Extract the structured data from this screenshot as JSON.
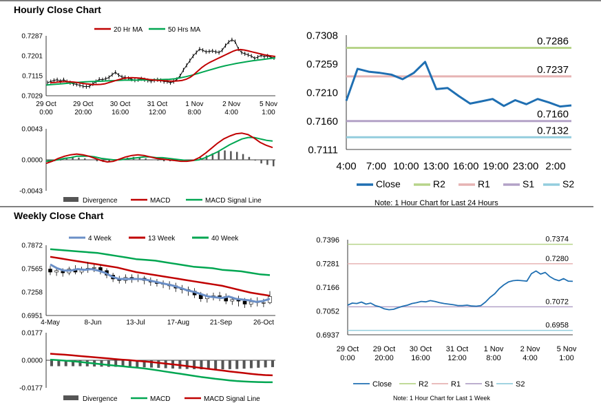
{
  "hourly_title": "Hourly Close Chart",
  "weekly_title": "Weekly Close Chart",
  "chart_data": [
    {
      "id": "hourly_price",
      "type": "line",
      "legend": [
        "20 Hr MA",
        "50 Hrs MA"
      ],
      "colors": {
        "ma20": "#c00000",
        "ma50": "#00a651",
        "price": "#000000"
      },
      "yticks": [
        "0.7287",
        "0.7201",
        "0.7115",
        "0.7029"
      ],
      "ylim": [
        0.7029,
        0.7287
      ],
      "xlabels": [
        [
          "29 Oct",
          "0:00"
        ],
        [
          "29 Oct",
          "20:00"
        ],
        [
          "30 Oct",
          "16:00"
        ],
        [
          "31 Oct",
          "12:00"
        ],
        [
          "1 Nov",
          "8:00"
        ],
        [
          "2 Nov",
          "4:00"
        ],
        [
          "5 Nov",
          "1:00"
        ]
      ],
      "close": [
        0.7085,
        0.709,
        0.7095,
        0.7098,
        0.7092,
        0.7098,
        0.709,
        0.7085,
        0.708,
        0.7078,
        0.7074,
        0.707,
        0.7068,
        0.707,
        0.708,
        0.709,
        0.71,
        0.7098,
        0.7102,
        0.7108,
        0.712,
        0.713,
        0.7118,
        0.711,
        0.7108,
        0.7104,
        0.71,
        0.7096,
        0.7098,
        0.7102,
        0.7098,
        0.7095,
        0.7092,
        0.7095,
        0.7098,
        0.7095,
        0.709,
        0.709,
        0.7085,
        0.709,
        0.71,
        0.7115,
        0.714,
        0.716,
        0.718,
        0.72,
        0.7215,
        0.723,
        0.7225,
        0.7218,
        0.722,
        0.7222,
        0.7218,
        0.7215,
        0.7225,
        0.7245,
        0.726,
        0.727,
        0.7262,
        0.723,
        0.7215,
        0.721,
        0.7205,
        0.72,
        0.719,
        0.7195,
        0.7203,
        0.7198,
        0.72,
        0.7195,
        0.7192
      ],
      "ma20": [
        0.7085,
        0.7086,
        0.7088,
        0.7089,
        0.709,
        0.7089,
        0.7088,
        0.7086,
        0.7083,
        0.7081,
        0.7079,
        0.7077,
        0.7077,
        0.7078,
        0.708,
        0.7085,
        0.709,
        0.7095,
        0.71,
        0.7104,
        0.7106,
        0.7107,
        0.7106,
        0.7105,
        0.7103,
        0.71,
        0.7098,
        0.7096,
        0.7095,
        0.7094,
        0.7093,
        0.7092,
        0.7092,
        0.7093,
        0.7095,
        0.71,
        0.7108,
        0.712,
        0.7135,
        0.715,
        0.7162,
        0.7172,
        0.718,
        0.7188,
        0.7196,
        0.7204,
        0.7212,
        0.722,
        0.7226,
        0.7228,
        0.7226,
        0.7222,
        0.7218,
        0.7214,
        0.721,
        0.7206,
        0.7203,
        0.72,
        0.7198
      ],
      "ma50": [
        0.7075,
        0.7077,
        0.7079,
        0.7081,
        0.7083,
        0.7085,
        0.7087,
        0.7089,
        0.709,
        0.7091,
        0.7092,
        0.7093,
        0.7094,
        0.7095,
        0.7096,
        0.7096,
        0.7096,
        0.7097,
        0.7097,
        0.7098,
        0.7098,
        0.7099,
        0.71,
        0.7102,
        0.7106,
        0.7111,
        0.7117,
        0.7124,
        0.7131,
        0.7138,
        0.7145,
        0.7152,
        0.7158,
        0.7163,
        0.7168,
        0.7172,
        0.7176,
        0.718,
        0.7183,
        0.7186,
        0.7189,
        0.7192
      ]
    },
    {
      "id": "hourly_macd",
      "type": "line",
      "legend": [
        "Divergence",
        "MACD",
        "MACD Signal Line"
      ],
      "colors": {
        "macd": "#c00000",
        "signal": "#00a651",
        "div": "#555555"
      },
      "yticks": [
        "0.0043",
        "0.0000",
        "-0.0043"
      ],
      "ylim": [
        -0.0043,
        0.0043
      ],
      "macd": [
        -0.0005,
        -0.0002,
        0.0002,
        0.0005,
        0.0007,
        0.0008,
        0.0007,
        0.0005,
        0.0002,
        -0.0001,
        -0.0003,
        -0.0002,
        0.0001,
        0.0004,
        0.0006,
        0.0007,
        0.0006,
        0.0004,
        0.0002,
        0.0001,
        0.0,
        -0.0001,
        -0.0002,
        -0.0002,
        -0.0001,
        0.0003,
        0.0009,
        0.0016,
        0.0023,
        0.0029,
        0.0033,
        0.0036,
        0.0037,
        0.0035,
        0.003,
        0.0024,
        0.002,
        0.0017
      ],
      "signal": [
        -0.0002,
        -0.0001,
        0.0,
        0.0002,
        0.0003,
        0.0005,
        0.0005,
        0.0005,
        0.0004,
        0.0002,
        0.0001,
        0.0,
        0.0,
        0.0001,
        0.0002,
        0.0003,
        0.0004,
        0.0004,
        0.0003,
        0.0003,
        0.0002,
        0.0001,
        0.0,
        -0.0001,
        -0.0001,
        0.0,
        0.0003,
        0.0007,
        0.0011,
        0.0016,
        0.0021,
        0.0025,
        0.0029,
        0.0031,
        0.0031,
        0.0029,
        0.0027,
        0.0026
      ],
      "divergence": [
        -0.0003,
        -0.0002,
        -0.0001,
        0.0002,
        0.0003,
        0.0003,
        0.0002,
        0.0,
        -0.0002,
        -0.0003,
        -0.0003,
        -0.0002,
        0.0001,
        0.0003,
        0.0004,
        0.0004,
        0.0002,
        0.0,
        -0.0001,
        -0.0002,
        -0.0002,
        -0.0002,
        -0.0002,
        -0.0001,
        0.0,
        0.0003,
        0.0006,
        0.0009,
        0.0012,
        0.0013,
        0.0012,
        0.0011,
        0.0008,
        0.0004,
        -0.0001,
        -0.0005,
        -0.0007,
        -0.0009
      ]
    },
    {
      "id": "hourly_24h",
      "type": "line",
      "legend": [
        "Close",
        "R2",
        "R1",
        "S1",
        "S2"
      ],
      "colors": {
        "close": "#1f6fb2",
        "r2": "#b7d48a",
        "r1": "#e6b3b3",
        "s1": "#b3a2c7",
        "s2": "#93cddd"
      },
      "yticks": [
        "0.7308",
        "0.7259",
        "0.7210",
        "0.7160",
        "0.7111"
      ],
      "ylim": [
        0.7111,
        0.7308
      ],
      "xticks": [
        "4:00",
        "7:00",
        "10:00",
        "13:00",
        "16:00",
        "19:00",
        "23:00",
        "2:00"
      ],
      "close": [
        0.7195,
        0.725,
        0.7245,
        0.7243,
        0.724,
        0.7232,
        0.7243,
        0.7262,
        0.7215,
        0.7217,
        0.7203,
        0.719,
        0.7194,
        0.7198,
        0.7186,
        0.7196,
        0.7189,
        0.7198,
        0.7192,
        0.7185,
        0.7187
      ],
      "levels": {
        "r2": 0.7286,
        "r1": 0.7237,
        "s1": 0.716,
        "s2": 0.7132
      },
      "level_labels": {
        "r2": "0.7286",
        "r1": "0.7237",
        "s1": "0.7160",
        "s2": "0.7132"
      },
      "note": "Note: 1 Hour Chart for Last 24 Hours"
    },
    {
      "id": "weekly_price",
      "type": "line",
      "legend": [
        "4 Week",
        "13 Week",
        "40 Week"
      ],
      "colors": {
        "ma4": "#6a8fc7",
        "ma13": "#c00000",
        "ma40": "#00a651"
      },
      "yticks": [
        "0.7872",
        "0.7565",
        "0.7258",
        "0.6951"
      ],
      "ylim": [
        0.6951,
        0.7872
      ],
      "xticks": [
        "4-May",
        "8-Jun",
        "13-Jul",
        "17-Aug",
        "21-Sep",
        "26-Oct"
      ],
      "close": [
        0.758,
        0.753,
        0.751,
        0.756,
        0.752,
        0.756,
        0.757,
        0.758,
        0.754,
        0.748,
        0.743,
        0.741,
        0.745,
        0.743,
        0.744,
        0.741,
        0.739,
        0.737,
        0.736,
        0.734,
        0.731,
        0.729,
        0.727,
        0.722,
        0.717,
        0.72,
        0.721,
        0.72,
        0.714,
        0.716,
        0.714,
        0.71,
        0.713,
        0.712,
        0.712,
        0.72
      ],
      "ma4": [
        0.762,
        0.757,
        0.754,
        0.754,
        0.756,
        0.755,
        0.756,
        0.754,
        0.751,
        0.746,
        0.743,
        0.743,
        0.743,
        0.743,
        0.742,
        0.74,
        0.738,
        0.736,
        0.734,
        0.731,
        0.728,
        0.726,
        0.723,
        0.72,
        0.719,
        0.718,
        0.72,
        0.717,
        0.716,
        0.715,
        0.713,
        0.714,
        0.717
      ],
      "ma13": [
        0.772,
        0.77,
        0.768,
        0.766,
        0.764,
        0.762,
        0.76,
        0.758,
        0.755,
        0.752,
        0.75,
        0.748,
        0.746,
        0.744,
        0.742,
        0.74,
        0.738,
        0.736,
        0.734,
        0.731,
        0.728,
        0.725,
        0.723,
        0.721
      ],
      "ma40": [
        0.782,
        0.781,
        0.78,
        0.779,
        0.778,
        0.777,
        0.775,
        0.773,
        0.771,
        0.769,
        0.768,
        0.767,
        0.765,
        0.763,
        0.761,
        0.759,
        0.758,
        0.757,
        0.755,
        0.754,
        0.753,
        0.751,
        0.749,
        0.748
      ],
      "candles": [
        [
          0.756,
          0.752,
          0.76,
          0.748
        ],
        [
          0.752,
          0.754,
          0.758,
          0.747
        ],
        [
          0.753,
          0.751,
          0.757,
          0.746
        ],
        [
          0.751,
          0.756,
          0.759,
          0.748
        ],
        [
          0.756,
          0.752,
          0.761,
          0.749
        ],
        [
          0.752,
          0.756,
          0.759,
          0.749
        ],
        [
          0.756,
          0.757,
          0.765,
          0.751
        ],
        [
          0.757,
          0.758,
          0.762,
          0.752
        ],
        [
          0.758,
          0.754,
          0.761,
          0.749
        ],
        [
          0.754,
          0.748,
          0.757,
          0.744
        ],
        [
          0.748,
          0.743,
          0.751,
          0.739
        ],
        [
          0.743,
          0.741,
          0.747,
          0.737
        ],
        [
          0.741,
          0.745,
          0.749,
          0.737
        ],
        [
          0.745,
          0.743,
          0.749,
          0.738
        ],
        [
          0.743,
          0.744,
          0.749,
          0.739
        ],
        [
          0.744,
          0.741,
          0.747,
          0.736
        ],
        [
          0.741,
          0.739,
          0.745,
          0.734
        ],
        [
          0.739,
          0.737,
          0.743,
          0.733
        ],
        [
          0.737,
          0.736,
          0.741,
          0.731
        ],
        [
          0.736,
          0.734,
          0.74,
          0.729
        ],
        [
          0.734,
          0.731,
          0.738,
          0.726
        ],
        [
          0.731,
          0.729,
          0.735,
          0.724
        ],
        [
          0.729,
          0.727,
          0.733,
          0.721
        ],
        [
          0.727,
          0.722,
          0.731,
          0.718
        ],
        [
          0.722,
          0.717,
          0.726,
          0.713
        ],
        [
          0.717,
          0.72,
          0.724,
          0.712
        ],
        [
          0.72,
          0.721,
          0.725,
          0.715
        ],
        [
          0.721,
          0.72,
          0.726,
          0.714
        ],
        [
          0.72,
          0.714,
          0.724,
          0.71
        ],
        [
          0.714,
          0.716,
          0.72,
          0.709
        ],
        [
          0.716,
          0.714,
          0.721,
          0.707
        ],
        [
          0.714,
          0.71,
          0.718,
          0.705
        ],
        [
          0.71,
          0.713,
          0.718,
          0.706
        ],
        [
          0.713,
          0.712,
          0.719,
          0.707
        ],
        [
          0.712,
          0.712,
          0.717,
          0.706
        ],
        [
          0.712,
          0.72,
          0.727,
          0.71
        ]
      ]
    },
    {
      "id": "weekly_macd",
      "type": "line",
      "legend": [
        "Divergence",
        "MACD",
        "MACD Signal Line"
      ],
      "colors": {
        "macd": "#00a651",
        "signal": "#c00000",
        "div": "#555555"
      },
      "yticks": [
        "0.0177",
        "0.0000",
        "-0.0177"
      ],
      "ylim": [
        -0.0177,
        0.0177
      ],
      "macd": [
        0.0004,
        0.0001,
        -0.0002,
        -0.0006,
        -0.001,
        -0.0015,
        -0.002,
        -0.0025,
        -0.003,
        -0.0034,
        -0.0038,
        -0.0043,
        -0.0047,
        -0.0052,
        -0.0058,
        -0.0065,
        -0.0072,
        -0.0079,
        -0.0086,
        -0.0093,
        -0.01,
        -0.0107,
        -0.0113,
        -0.0119,
        -0.0124,
        -0.0129,
        -0.0133,
        -0.0136,
        -0.0138,
        -0.014,
        -0.0141,
        -0.0141
      ],
      "signal": [
        0.0042,
        0.0039,
        0.0036,
        0.0032,
        0.0028,
        0.0024,
        0.002,
        0.0016,
        0.0012,
        0.0008,
        0.0004,
        0.0001,
        -0.0003,
        -0.0007,
        -0.0011,
        -0.0016,
        -0.0021,
        -0.0026,
        -0.0031,
        -0.0037,
        -0.0043,
        -0.0049,
        -0.0055,
        -0.006,
        -0.0066,
        -0.0072,
        -0.0077,
        -0.0082,
        -0.0087,
        -0.0092,
        -0.0095,
        -0.0097
      ],
      "divergence": [
        -0.0038,
        -0.0038,
        -0.0038,
        -0.0038,
        -0.0038,
        -0.0039,
        -0.004,
        -0.0041,
        -0.0042,
        -0.0042,
        -0.0042,
        -0.0044,
        -0.0044,
        -0.0045,
        -0.0047,
        -0.0049,
        -0.0051,
        -0.0053,
        -0.0055,
        -0.0056,
        -0.0057,
        -0.0058,
        -0.0058,
        -0.0059,
        -0.0058,
        -0.0057,
        -0.0056,
        -0.0054,
        -0.0051,
        -0.0048,
        -0.0046,
        -0.0044
      ]
    },
    {
      "id": "weekly_1w",
      "type": "line",
      "legend": [
        "Close",
        "R2",
        "R1",
        "S1",
        "S2"
      ],
      "colors": {
        "close": "#1f6fb2",
        "r2": "#b7d48a",
        "r1": "#e6b3b3",
        "s1": "#b3a2c7",
        "s2": "#93cddd"
      },
      "yticks": [
        "0.7396",
        "0.7281",
        "0.7166",
        "0.7052",
        "0.6937"
      ],
      "ylim": [
        0.6937,
        0.7396
      ],
      "xlabels": [
        [
          "29 Oct",
          "0:00"
        ],
        [
          "29 Oct",
          "20:00"
        ],
        [
          "30 Oct",
          "16:00"
        ],
        [
          "31 Oct",
          "12:00"
        ],
        [
          "1 Nov",
          "8:00"
        ],
        [
          "2 Nov",
          "4:00"
        ],
        [
          "5 Nov",
          "1:00"
        ]
      ],
      "close": [
        0.708,
        0.709,
        0.7088,
        0.7095,
        0.7085,
        0.709,
        0.7078,
        0.7072,
        0.7062,
        0.7058,
        0.706,
        0.7068,
        0.7075,
        0.708,
        0.7088,
        0.7092,
        0.7098,
        0.7096,
        0.7102,
        0.7098,
        0.7092,
        0.7088,
        0.7085,
        0.7082,
        0.7078,
        0.7078,
        0.708,
        0.7076,
        0.7075,
        0.7078,
        0.7095,
        0.7118,
        0.7135,
        0.716,
        0.7178,
        0.7192,
        0.7198,
        0.72,
        0.7198,
        0.7196,
        0.7232,
        0.7245,
        0.723,
        0.7238,
        0.7218,
        0.7205,
        0.7198,
        0.7208,
        0.7196,
        0.7195
      ],
      "levels": {
        "r2": 0.7374,
        "r1": 0.728,
        "s1": 0.7072,
        "s2": 0.6958
      },
      "level_labels": {
        "r2": "0.7374",
        "r1": "0.7280",
        "s1": "0.7072",
        "s2": "0.6958"
      },
      "note": "Note: 1 Hour Chart for Last 1 Week"
    }
  ]
}
